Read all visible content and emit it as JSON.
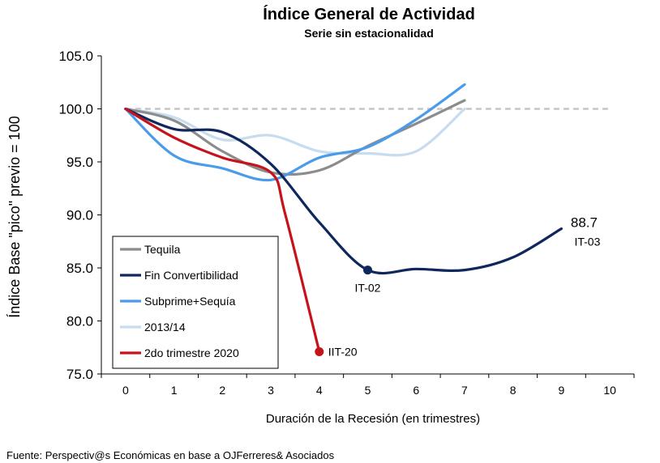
{
  "chart_data": {
    "type": "line",
    "title": "Índice General de Actividad",
    "subtitle": "Serie sin estacionalidad",
    "xlabel": "Duración de la Recesión (en trimestres)",
    "ylabel": "Índice Base \"pico\" previo = 100",
    "xlim": [
      -0.5,
      10.5
    ],
    "ylim": [
      75,
      105
    ],
    "x_ticks": [
      0,
      1,
      2,
      3,
      4,
      5,
      6,
      7,
      8,
      9,
      10
    ],
    "y_ticks": [
      75,
      80,
      85,
      90,
      95,
      100,
      105
    ],
    "y_tick_labels": [
      "75.0",
      "80.0",
      "85.0",
      "90.0",
      "95.0",
      "100.0",
      "105.0"
    ],
    "reference_line": {
      "y": 100,
      "style": "dashed",
      "color": "#c6c6c6"
    },
    "legend_position": "bottom-left",
    "grid": false,
    "series": [
      {
        "name": "Tequila",
        "color": "#8c8c8c",
        "x": [
          0,
          1,
          2,
          3,
          4,
          5,
          6,
          7
        ],
        "y": [
          100,
          98.9,
          96.0,
          94.0,
          94.2,
          96.5,
          98.6,
          100.8
        ]
      },
      {
        "name": "Fin Convertibilidad",
        "color": "#10275e",
        "x": [
          0,
          1,
          2,
          3,
          4,
          5,
          6,
          7,
          8,
          9
        ],
        "y": [
          100,
          98.1,
          97.8,
          94.8,
          89.3,
          84.8,
          84.9,
          84.8,
          86.0,
          88.7
        ]
      },
      {
        "name": "Subprime+Sequía",
        "color": "#4a9ceb",
        "x": [
          0,
          1,
          2,
          3,
          4,
          5,
          6,
          7
        ],
        "y": [
          100,
          95.6,
          94.4,
          93.3,
          95.4,
          96.4,
          99.0,
          102.3
        ]
      },
      {
        "name": "2013/14",
        "color": "#c7dcef",
        "x": [
          0,
          1,
          2,
          3,
          4,
          5,
          6,
          7
        ],
        "y": [
          100,
          99.2,
          97.1,
          97.5,
          96.0,
          95.8,
          96.0,
          100.0
        ]
      },
      {
        "name": "2do trimestre 2020",
        "color": "#c5131b",
        "x": [
          0,
          1,
          2,
          3,
          3.3,
          4
        ],
        "y": [
          100,
          97.3,
          95.4,
          94.0,
          90.0,
          77.1
        ]
      }
    ],
    "annotations": [
      {
        "text": "IT-02",
        "x": 5,
        "y": 84.8
      },
      {
        "text": "88.7",
        "x": 9,
        "y": 88.7
      },
      {
        "text": "IT-03",
        "x": 9,
        "y": 88.7
      },
      {
        "text": "IIT-20",
        "x": 4,
        "y": 77.1
      }
    ],
    "markers": [
      {
        "series": "Fin Convertibilidad",
        "x": 5,
        "y": 84.8
      },
      {
        "series": "2do trimestre 2020",
        "x": 4,
        "y": 77.1
      }
    ]
  },
  "source": "Fuente: Perspectiv@s Económicas en base a OJFerreres& Asociados"
}
